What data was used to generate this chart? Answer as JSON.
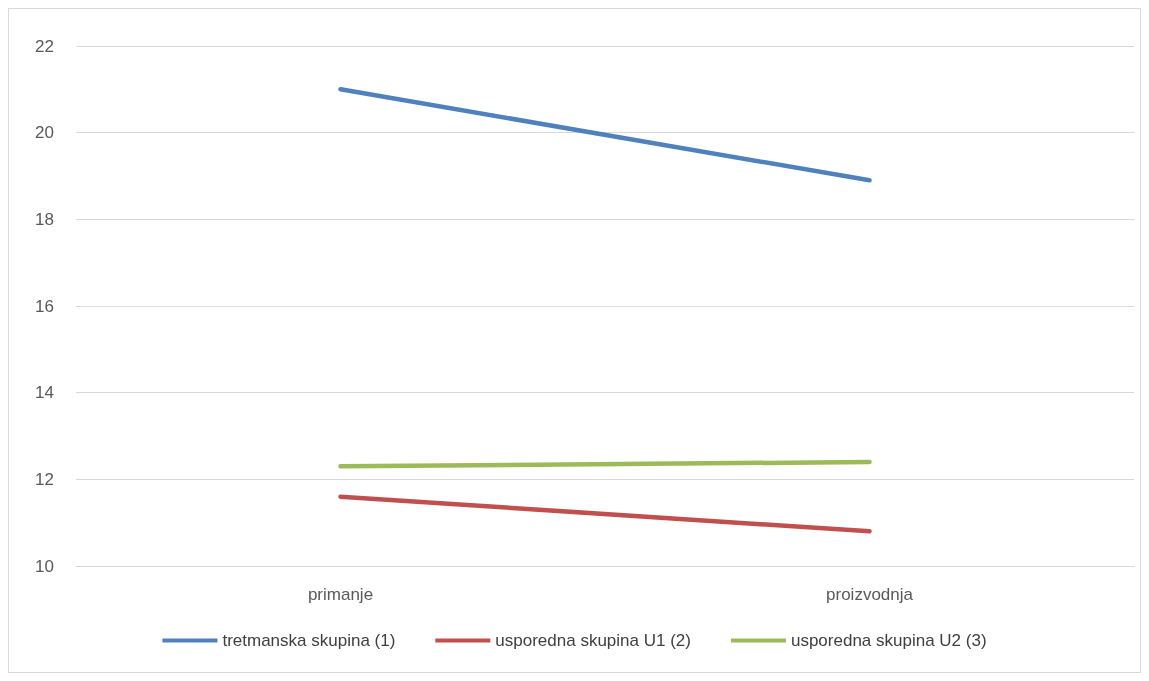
{
  "chart_data": {
    "type": "line",
    "categories": [
      "primanje",
      "proizvodnja"
    ],
    "series": [
      {
        "name": "tretmanska skupina (1)",
        "color": "#4f81bd",
        "values": [
          21.0,
          18.9
        ]
      },
      {
        "name": "usporedna skupina U1 (2)",
        "color": "#c0504d",
        "values": [
          11.6,
          10.8
        ]
      },
      {
        "name": "usporedna skupina U2 (3)",
        "color": "#9bbb59",
        "values": [
          12.3,
          12.4
        ]
      }
    ],
    "ylim": [
      10,
      22
    ],
    "yticks": [
      10,
      12,
      14,
      16,
      18,
      20,
      22
    ],
    "grid": "y",
    "legend": "bottom",
    "marker": "none",
    "line_style": "solid"
  }
}
